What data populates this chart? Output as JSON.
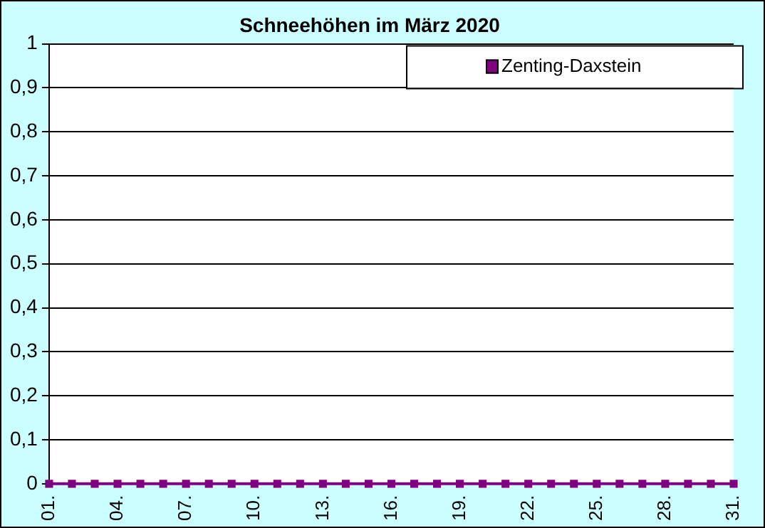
{
  "chart_data": {
    "type": "line",
    "title": "Schneehöhen im März 2020",
    "categories": [
      "01.",
      null,
      null,
      "04.",
      null,
      null,
      "07.",
      null,
      null,
      "10.",
      null,
      null,
      "13.",
      null,
      null,
      "16.",
      null,
      null,
      "19.",
      null,
      null,
      "22.",
      null,
      null,
      "25.",
      null,
      null,
      "28.",
      null,
      null,
      "31."
    ],
    "series": [
      {
        "name": "Zenting-Daxstein",
        "color": "#800080",
        "values": [
          0,
          0,
          0,
          0,
          0,
          0,
          0,
          0,
          0,
          0,
          0,
          0,
          0,
          0,
          0,
          0,
          0,
          0,
          0,
          0,
          0,
          0,
          0,
          0,
          0,
          0,
          0,
          0,
          0,
          0,
          0
        ]
      }
    ],
    "ylim": [
      0,
      1
    ],
    "yticks": [
      0,
      {
        "value": 0.1,
        "label": "0,1"
      },
      {
        "value": 0.2,
        "label": "0,2"
      },
      {
        "value": 0.3,
        "label": "0,3"
      },
      {
        "value": 0.4,
        "label": "0,4"
      },
      {
        "value": 0.5,
        "label": "0,5"
      },
      {
        "value": 0.6,
        "label": "0,6"
      },
      {
        "value": 0.7,
        "label": "0,7"
      },
      {
        "value": 0.8,
        "label": "0,8"
      },
      {
        "value": 0.9,
        "label": "0,9"
      },
      1
    ],
    "grid": "y",
    "legend": "top right",
    "marker": "square",
    "line_style": "solid"
  }
}
